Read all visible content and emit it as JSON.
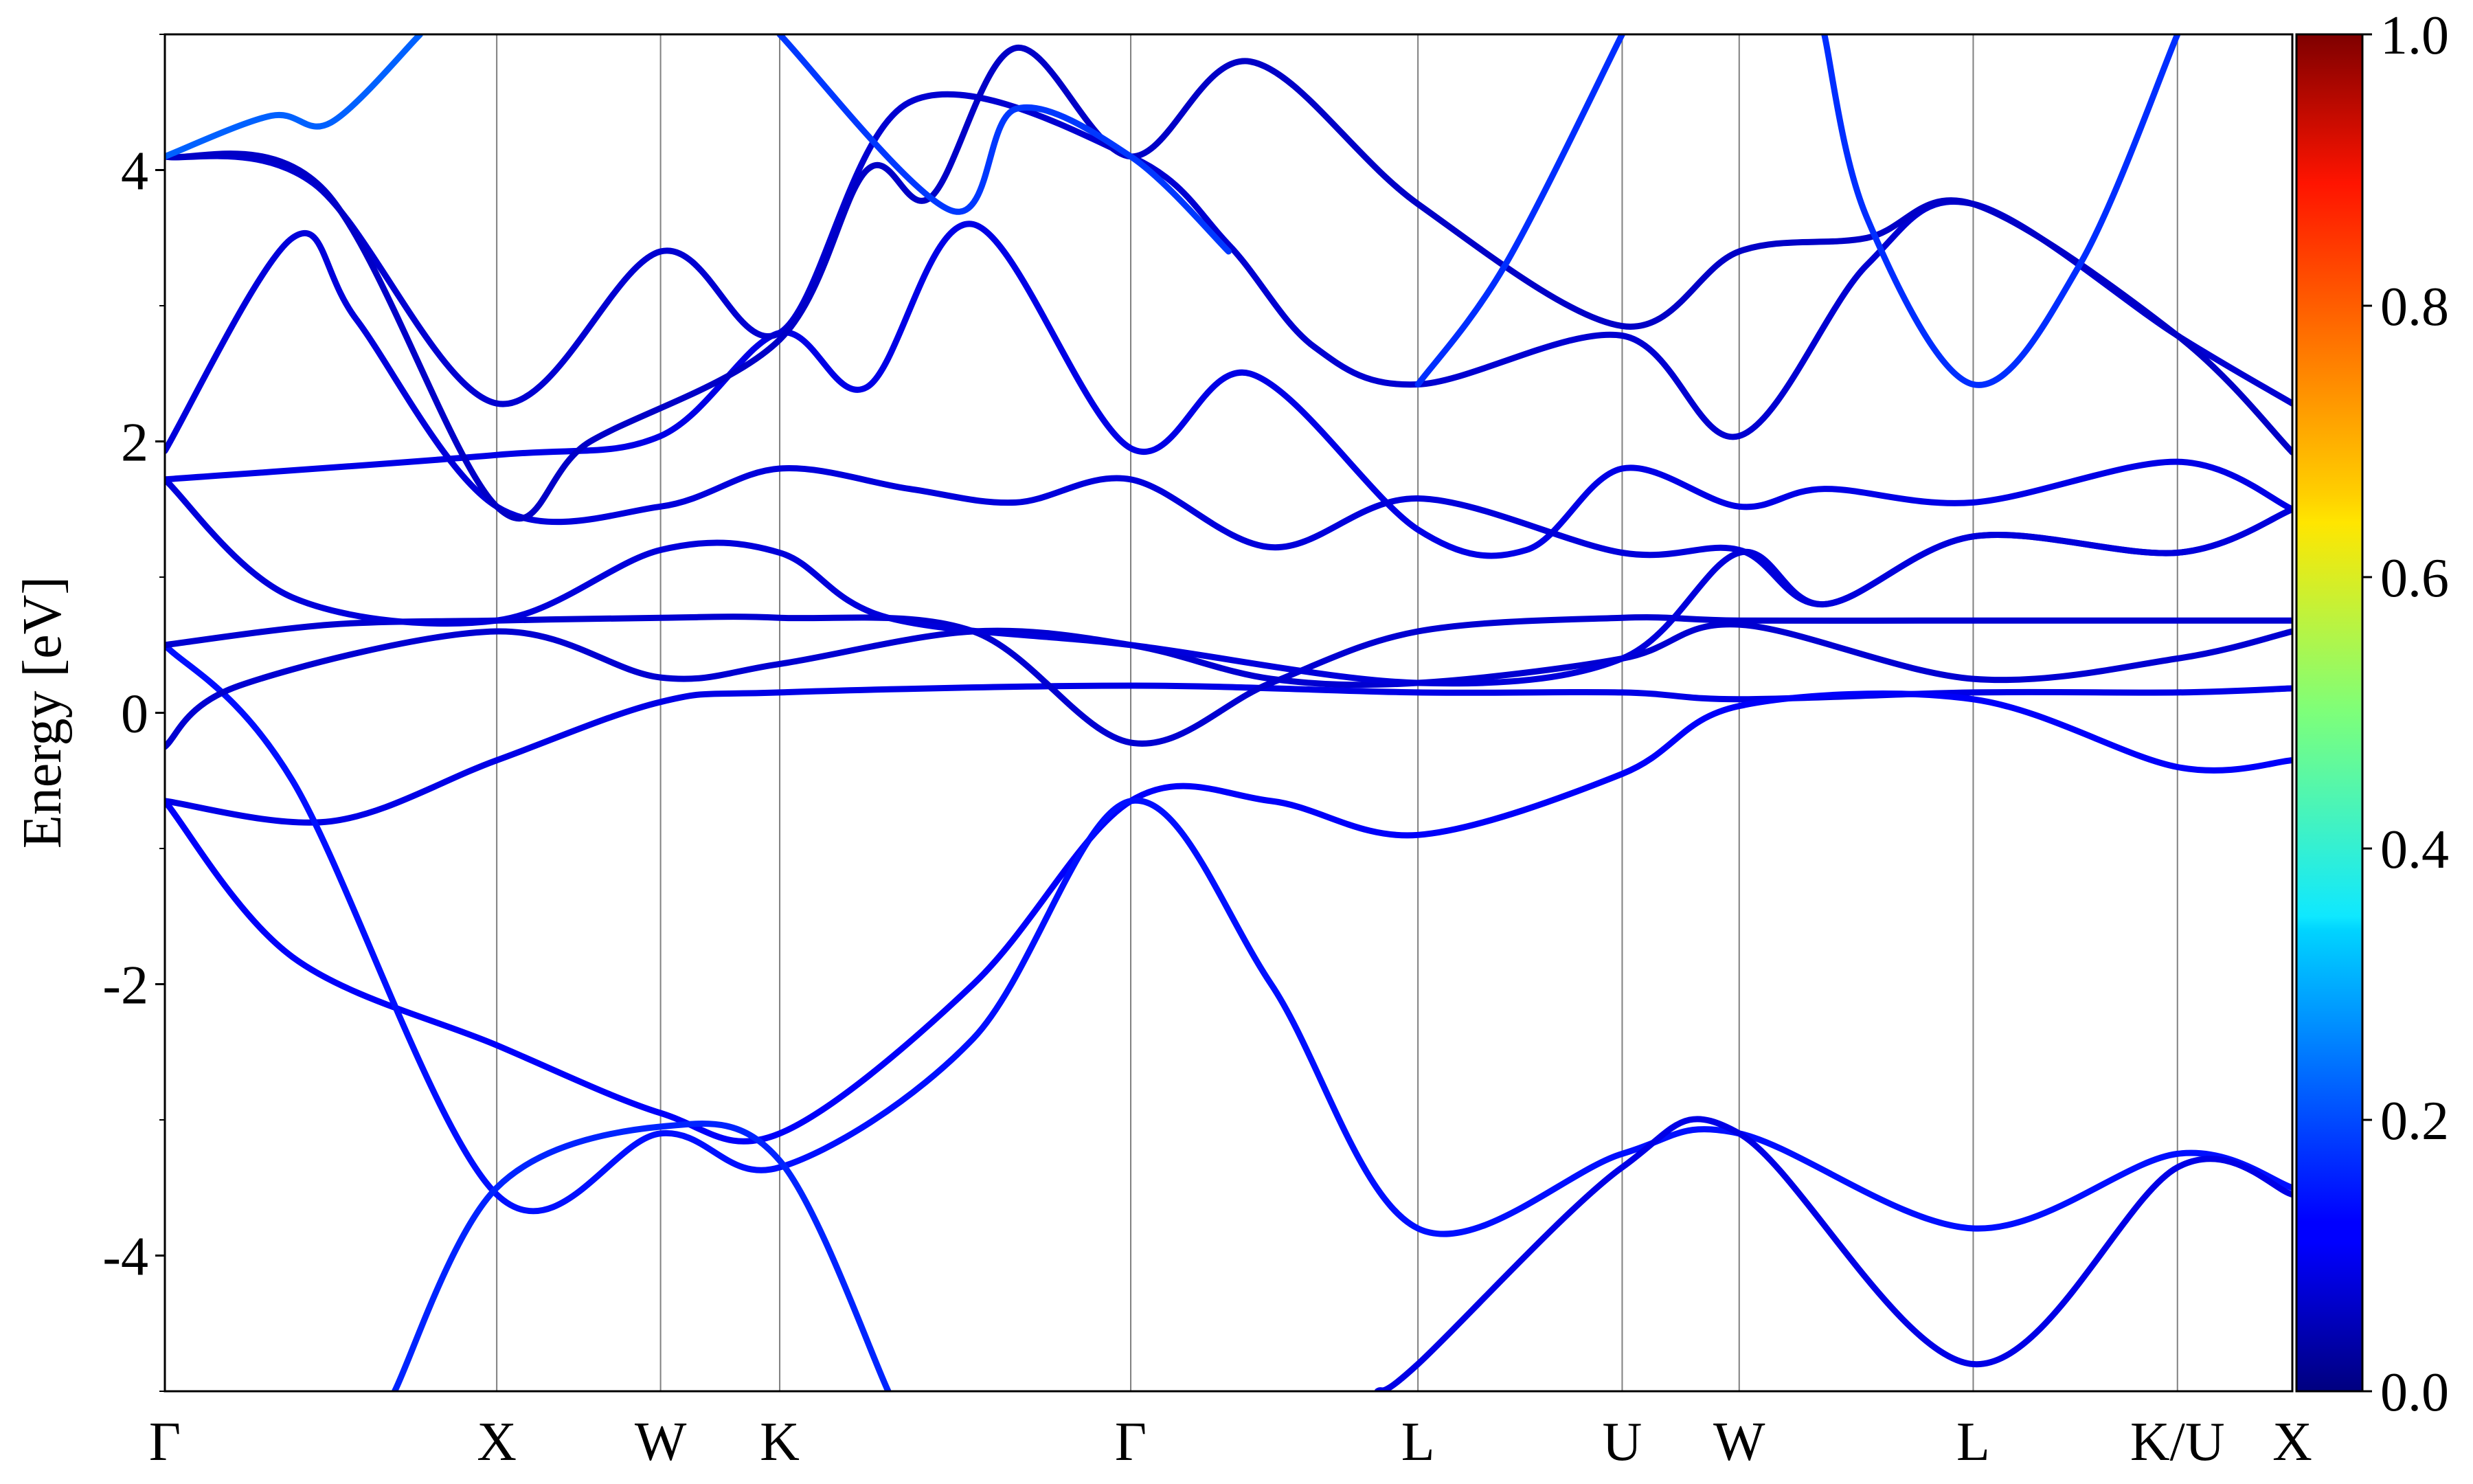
{
  "chart_data": {
    "type": "line",
    "title": "",
    "ylabel": "Energy [eV]",
    "xlabel": "",
    "ylim": [
      -5,
      5
    ],
    "yticks": [
      -4,
      -2,
      0,
      2,
      4
    ],
    "ytick_labels": [
      "-4",
      "-2",
      "0",
      "2",
      "4"
    ],
    "kpath": [
      {
        "label": "Γ",
        "x": 0.0
      },
      {
        "label": "X",
        "x": 0.156
      },
      {
        "label": "W",
        "x": 0.233
      },
      {
        "label": "K",
        "x": 0.289
      },
      {
        "label": "Γ",
        "x": 0.454
      },
      {
        "label": "L",
        "x": 0.589
      },
      {
        "label": "U",
        "x": 0.685
      },
      {
        "label": "W",
        "x": 0.74
      },
      {
        "label": "L",
        "x": 0.85
      },
      {
        "label": "K/U",
        "x": 0.946
      },
      {
        "label": "X",
        "x": 1.0
      }
    ],
    "colorbar": {
      "range": [
        0.0,
        1.0
      ],
      "ticks": [
        0.0,
        0.2,
        0.4,
        0.6,
        0.8,
        1.0
      ],
      "tick_labels": [
        "0.0",
        "0.2",
        "0.4",
        "0.6",
        "0.8",
        "1.0"
      ],
      "colormap": "jet"
    },
    "series": [
      {
        "weight": 0.1,
        "points": [
          [
            0,
            -0.65
          ],
          [
            0.078,
            -0.8
          ],
          [
            0.156,
            -0.35
          ],
          [
            0.233,
            0.08
          ],
          [
            0.289,
            0.15
          ],
          [
            0.454,
            0.2
          ],
          [
            0.589,
            0.15
          ],
          [
            0.685,
            0.15
          ],
          [
            0.74,
            0.1
          ],
          [
            0.85,
            0.15
          ],
          [
            0.946,
            0.15
          ],
          [
            1.0,
            0.18
          ]
        ]
      },
      {
        "weight": 0.12,
        "points": [
          [
            0,
            -0.65
          ],
          [
            0.06,
            -1.8
          ],
          [
            0.156,
            -2.45
          ],
          [
            0.233,
            -2.95
          ],
          [
            0.289,
            -3.1
          ],
          [
            0.38,
            -2.0
          ],
          [
            0.454,
            -0.65
          ],
          [
            0.52,
            -0.65
          ],
          [
            0.589,
            -0.9
          ],
          [
            0.685,
            -0.45
          ],
          [
            0.74,
            0.05
          ],
          [
            0.85,
            0.1
          ],
          [
            0.946,
            -0.4
          ],
          [
            1.0,
            -0.35
          ]
        ]
      },
      {
        "weight": 0.14,
        "points": [
          [
            0,
            0.5
          ],
          [
            0.06,
            -0.5
          ],
          [
            0.156,
            -3.55
          ],
          [
            0.233,
            -3.1
          ],
          [
            0.289,
            -3.35
          ],
          [
            0.38,
            -2.4
          ],
          [
            0.454,
            -0.65
          ],
          [
            0.52,
            -2.0
          ],
          [
            0.589,
            -3.8
          ],
          [
            0.685,
            -3.25
          ],
          [
            0.74,
            -3.1
          ],
          [
            0.85,
            -3.8
          ],
          [
            0.946,
            -3.25
          ],
          [
            1.0,
            -3.5
          ]
        ]
      },
      {
        "weight": 0.16,
        "points": [
          [
            0.108,
            -5.0
          ],
          [
            0.156,
            -3.5
          ],
          [
            0.233,
            -3.05
          ],
          [
            0.289,
            -3.3
          ],
          [
            0.34,
            -5.0
          ]
        ]
      },
      {
        "weight": 0.08,
        "points": [
          [
            0,
            -0.25
          ],
          [
            0.035,
            0.2
          ],
          [
            0.156,
            0.6
          ],
          [
            0.233,
            0.26
          ],
          [
            0.289,
            0.36
          ],
          [
            0.38,
            0.6
          ],
          [
            0.454,
            0.5
          ],
          [
            0.52,
            0.25
          ],
          [
            0.589,
            0.22
          ],
          [
            0.685,
            0.4
          ],
          [
            0.74,
            0.65
          ],
          [
            0.85,
            0.25
          ],
          [
            0.946,
            0.4
          ],
          [
            1.0,
            0.6
          ]
        ]
      },
      {
        "weight": 0.08,
        "points": [
          [
            0,
            0.5
          ],
          [
            0.078,
            0.65
          ],
          [
            0.156,
            0.68
          ],
          [
            0.233,
            0.7
          ],
          [
            0.289,
            0.7
          ],
          [
            0.38,
            0.6
          ],
          [
            0.454,
            -0.22
          ],
          [
            0.52,
            0.22
          ],
          [
            0.589,
            0.6
          ],
          [
            0.685,
            0.7
          ],
          [
            0.74,
            0.68
          ],
          [
            0.85,
            0.68
          ],
          [
            0.946,
            0.68
          ],
          [
            1.0,
            0.68
          ]
        ]
      },
      {
        "weight": 0.09,
        "points": [
          [
            0,
            1.72
          ],
          [
            0.06,
            0.85
          ],
          [
            0.156,
            0.68
          ],
          [
            0.233,
            1.2
          ],
          [
            0.289,
            1.18
          ],
          [
            0.34,
            0.7
          ],
          [
            0.454,
            0.5
          ],
          [
            0.589,
            0.22
          ],
          [
            0.685,
            0.4
          ],
          [
            0.74,
            1.18
          ],
          [
            0.78,
            0.8
          ],
          [
            0.85,
            1.3
          ],
          [
            0.946,
            1.18
          ],
          [
            1.0,
            1.5
          ]
        ]
      },
      {
        "weight": 0.1,
        "points": [
          [
            0,
            1.72
          ],
          [
            0.156,
            1.9
          ],
          [
            0.233,
            2.04
          ],
          [
            0.289,
            2.8
          ],
          [
            0.33,
            2.4
          ],
          [
            0.38,
            3.6
          ],
          [
            0.454,
            1.95
          ],
          [
            0.51,
            2.5
          ],
          [
            0.589,
            1.35
          ],
          [
            0.64,
            1.2
          ],
          [
            0.685,
            1.8
          ],
          [
            0.74,
            1.52
          ],
          [
            0.78,
            1.65
          ],
          [
            0.85,
            1.55
          ],
          [
            0.946,
            1.85
          ],
          [
            1.0,
            1.5
          ]
        ]
      },
      {
        "weight": 0.09,
        "points": [
          [
            0,
            1.93
          ],
          [
            0.06,
            3.5
          ],
          [
            0.09,
            2.9
          ],
          [
            0.156,
            1.52
          ],
          [
            0.233,
            1.52
          ],
          [
            0.289,
            1.8
          ],
          [
            0.35,
            1.65
          ],
          [
            0.4,
            1.55
          ],
          [
            0.454,
            1.72
          ],
          [
            0.52,
            1.22
          ],
          [
            0.589,
            1.58
          ],
          [
            0.685,
            1.18
          ],
          [
            0.74,
            1.2
          ],
          [
            0.78,
            0.8
          ],
          [
            0.85,
            1.3
          ],
          [
            0.946,
            1.18
          ],
          [
            1.0,
            1.5
          ]
        ]
      },
      {
        "weight": 0.08,
        "points": [
          [
            0,
            4.1
          ],
          [
            0.07,
            3.9
          ],
          [
            0.156,
            2.28
          ],
          [
            0.233,
            3.4
          ],
          [
            0.289,
            2.8
          ],
          [
            0.35,
            4.5
          ],
          [
            0.454,
            4.1
          ],
          [
            0.5,
            3.45
          ],
          [
            0.54,
            2.7
          ],
          [
            0.589,
            2.42
          ],
          [
            0.685,
            2.78
          ],
          [
            0.74,
            2.04
          ],
          [
            0.8,
            3.3
          ],
          [
            0.85,
            3.75
          ],
          [
            0.946,
            2.78
          ],
          [
            1.0,
            2.28
          ]
        ]
      },
      {
        "weight": 0.07,
        "points": [
          [
            0,
            4.1
          ],
          [
            0.075,
            3.85
          ],
          [
            0.156,
            1.52
          ],
          [
            0.2,
            2.0
          ],
          [
            0.289,
            2.75
          ],
          [
            0.33,
            4.0
          ],
          [
            0.36,
            3.8
          ],
          [
            0.4,
            4.9
          ],
          [
            0.454,
            4.1
          ],
          [
            0.51,
            4.8
          ],
          [
            0.589,
            3.75
          ],
          [
            0.685,
            2.85
          ],
          [
            0.74,
            3.4
          ],
          [
            0.8,
            3.5
          ],
          [
            0.85,
            3.75
          ],
          [
            0.946,
            2.78
          ],
          [
            1.0,
            1.92
          ]
        ]
      },
      {
        "weight": 0.22,
        "points": [
          [
            0,
            4.1
          ],
          [
            0.05,
            4.4
          ],
          [
            0.078,
            4.35
          ],
          [
            0.12,
            5.0
          ]
        ]
      },
      {
        "weight": 0.18,
        "points": [
          [
            0.289,
            5.0
          ],
          [
            0.37,
            3.7
          ],
          [
            0.4,
            4.45
          ],
          [
            0.454,
            4.1
          ],
          [
            0.5,
            3.4
          ]
        ]
      },
      {
        "weight": 0.17,
        "points": [
          [
            0.685,
            5.0
          ],
          [
            0.63,
            3.3
          ],
          [
            0.589,
            2.42
          ]
        ]
      },
      {
        "weight": 0.17,
        "points": [
          [
            0.78,
            5.0
          ],
          [
            0.8,
            3.65
          ],
          [
            0.85,
            2.42
          ],
          [
            0.9,
            3.3
          ],
          [
            0.946,
            5.0
          ]
        ]
      },
      {
        "weight": 0.1,
        "points": [
          [
            0.57,
            -5.0
          ],
          [
            0.589,
            -4.8
          ],
          [
            0.685,
            -3.35
          ],
          [
            0.74,
            -3.1
          ],
          [
            0.85,
            -4.8
          ],
          [
            0.946,
            -3.35
          ],
          [
            1.0,
            -3.55
          ]
        ]
      }
    ]
  }
}
